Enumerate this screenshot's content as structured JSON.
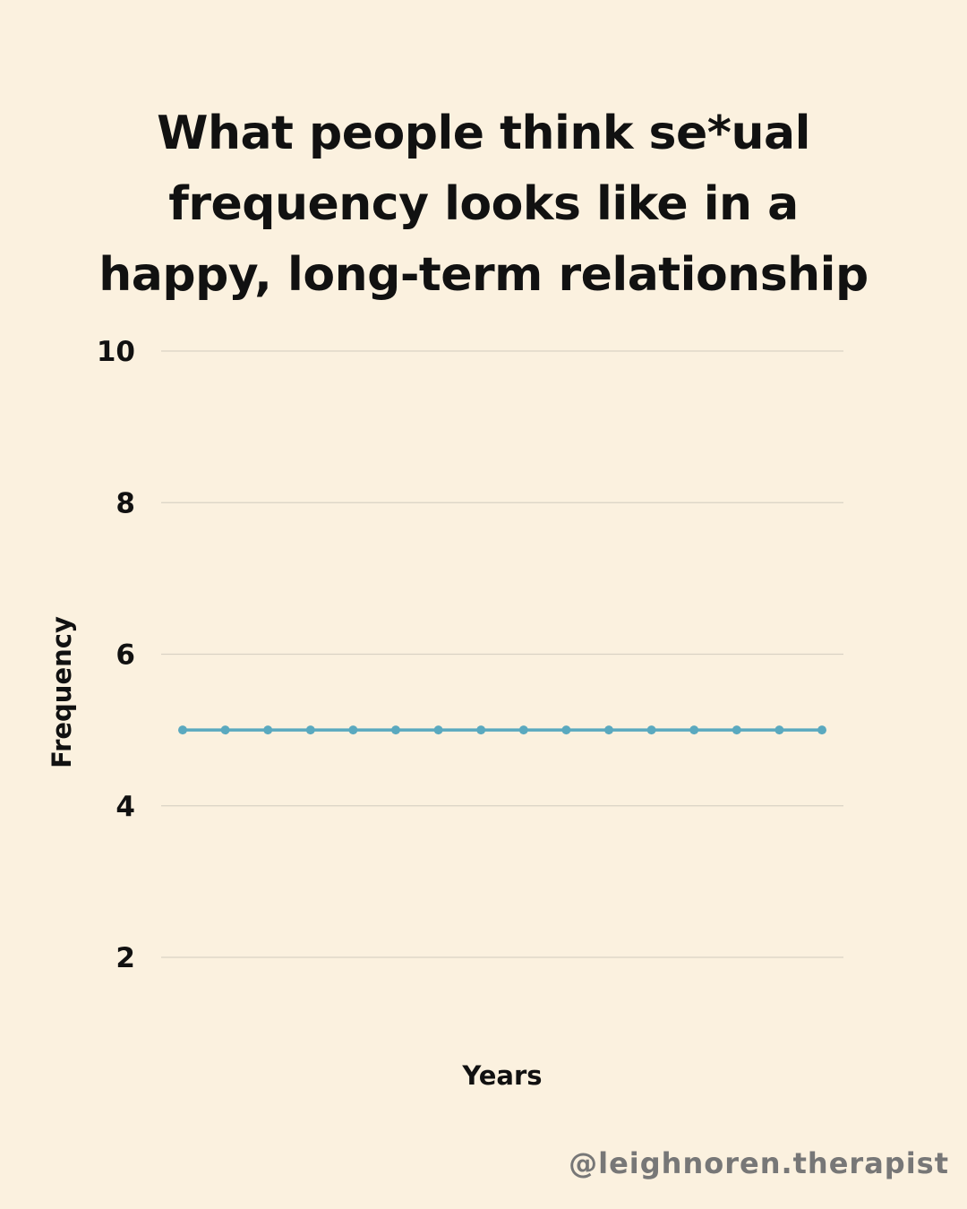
{
  "title_lines": [
    "What people think se*ual",
    "frequency looks like in a",
    "happy, long-term relationship"
  ],
  "chart_data": {
    "type": "line",
    "title": "What people think se*ual frequency looks like in a happy, long-term relationship",
    "xlabel": "Years",
    "ylabel": "Frequency",
    "yticks": [
      2,
      4,
      6,
      8,
      10
    ],
    "ylim": [
      0.9,
      10.6
    ],
    "grid": true,
    "x": [
      1,
      2,
      3,
      4,
      5,
      6,
      7,
      8,
      9,
      10,
      11,
      12,
      13,
      14,
      15,
      16
    ],
    "series": [
      {
        "values": [
          5,
          5,
          5,
          5,
          5,
          5,
          5,
          5,
          5,
          5,
          5,
          5,
          5,
          5,
          5,
          5
        ],
        "color": "#5aa9bf"
      }
    ],
    "colors": {
      "background": "#fbf1df",
      "grid": "#d9d2c4",
      "text": "#111111",
      "line": "#5aa9bf"
    }
  },
  "watermark": "@leighnoren.therapist"
}
